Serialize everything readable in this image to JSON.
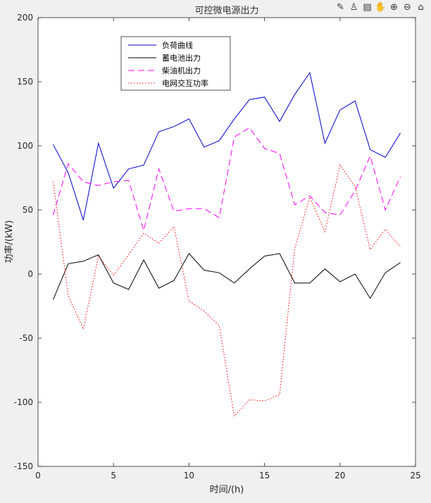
{
  "toolbar": {
    "icons": [
      "brush-icon",
      "export-icon",
      "data-tips-icon",
      "pan-icon",
      "zoom-in-icon",
      "zoom-out-icon",
      "home-icon"
    ],
    "glyphs": [
      "✎",
      "♙",
      "▤",
      "✋",
      "⊕",
      "⊖",
      "⌂"
    ]
  },
  "chart_data": {
    "type": "line",
    "title": "可控微电源出力",
    "xlabel": "时间/(h)",
    "ylabel": "功率/(kW)",
    "xlim": [
      0,
      25
    ],
    "ylim": [
      -150,
      200
    ],
    "xticks": [
      0,
      5,
      10,
      15,
      20,
      25
    ],
    "yticks": [
      -150,
      -100,
      -50,
      0,
      50,
      100,
      150,
      200
    ],
    "x": [
      1,
      2,
      3,
      4,
      5,
      6,
      7,
      8,
      9,
      10,
      11,
      12,
      13,
      14,
      15,
      16,
      17,
      18,
      19,
      20,
      21,
      22,
      23,
      24
    ],
    "legend_position": "top-left",
    "series": [
      {
        "name": "负荷曲线",
        "color": "#0000cc",
        "style": "solid",
        "values": [
          101,
          79,
          42,
          102,
          67,
          82,
          85,
          111,
          115,
          121,
          99,
          104,
          121,
          136,
          138,
          119,
          140,
          157,
          102,
          128,
          135,
          97,
          91,
          110
        ]
      },
      {
        "name": "蓄电池出力",
        "color": "#000000",
        "style": "solid",
        "values": [
          -20,
          8,
          10,
          15,
          -7,
          -12,
          11,
          -11,
          -5,
          16,
          3,
          1,
          -7,
          4,
          14,
          16,
          -7,
          -7,
          4,
          -6,
          0,
          -19,
          1,
          9
        ]
      },
      {
        "name": "柴油机出力",
        "color": "#ff00ff",
        "style": "dashed",
        "values": [
          46,
          86,
          72,
          69,
          72,
          73,
          34,
          82,
          49,
          51,
          51,
          44,
          107,
          114,
          98,
          94,
          54,
          61,
          48,
          46,
          65,
          92,
          50,
          76
        ]
      },
      {
        "name": "电网交互功率",
        "color": "#ff0000",
        "style": "dotted",
        "values": [
          72,
          -17,
          -43,
          14,
          -1,
          15,
          32,
          24,
          37,
          -21,
          -29,
          -40,
          -111,
          -98,
          -99,
          -94,
          20,
          60,
          33,
          85,
          68,
          19,
          35,
          21
        ]
      }
    ]
  }
}
